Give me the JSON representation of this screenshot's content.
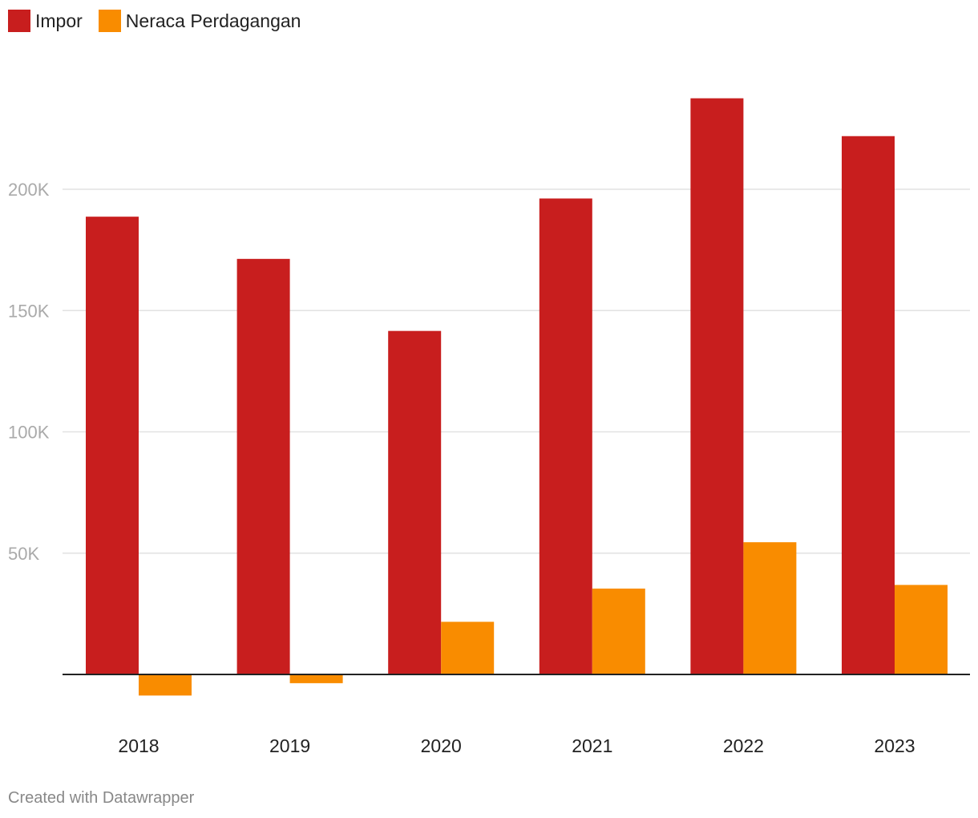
{
  "legend": {
    "items": [
      {
        "label": "Impor",
        "color": "#c81e1e"
      },
      {
        "label": "Neraca Perdagangan",
        "color": "#f98c00"
      }
    ]
  },
  "footer": {
    "credit": "Created with Datawrapper"
  },
  "chart_data": {
    "type": "bar",
    "categories": [
      "2018",
      "2019",
      "2020",
      "2021",
      "2022",
      "2023"
    ],
    "series": [
      {
        "name": "Impor",
        "color": "#c81e1e",
        "values": [
          188700,
          171300,
          141600,
          196200,
          237500,
          221900
        ]
      },
      {
        "name": "Neraca Perdagangan",
        "color": "#f98c00",
        "values": [
          -8700,
          -3600,
          21700,
          35400,
          54500,
          36900
        ]
      }
    ],
    "yticks": [
      50000,
      100000,
      150000,
      200000
    ],
    "ytick_labels": [
      "50K",
      "100K",
      "150K",
      "200K"
    ],
    "ylim": [
      -15000,
      250000
    ],
    "grid": true,
    "legend_position": "top-left"
  }
}
